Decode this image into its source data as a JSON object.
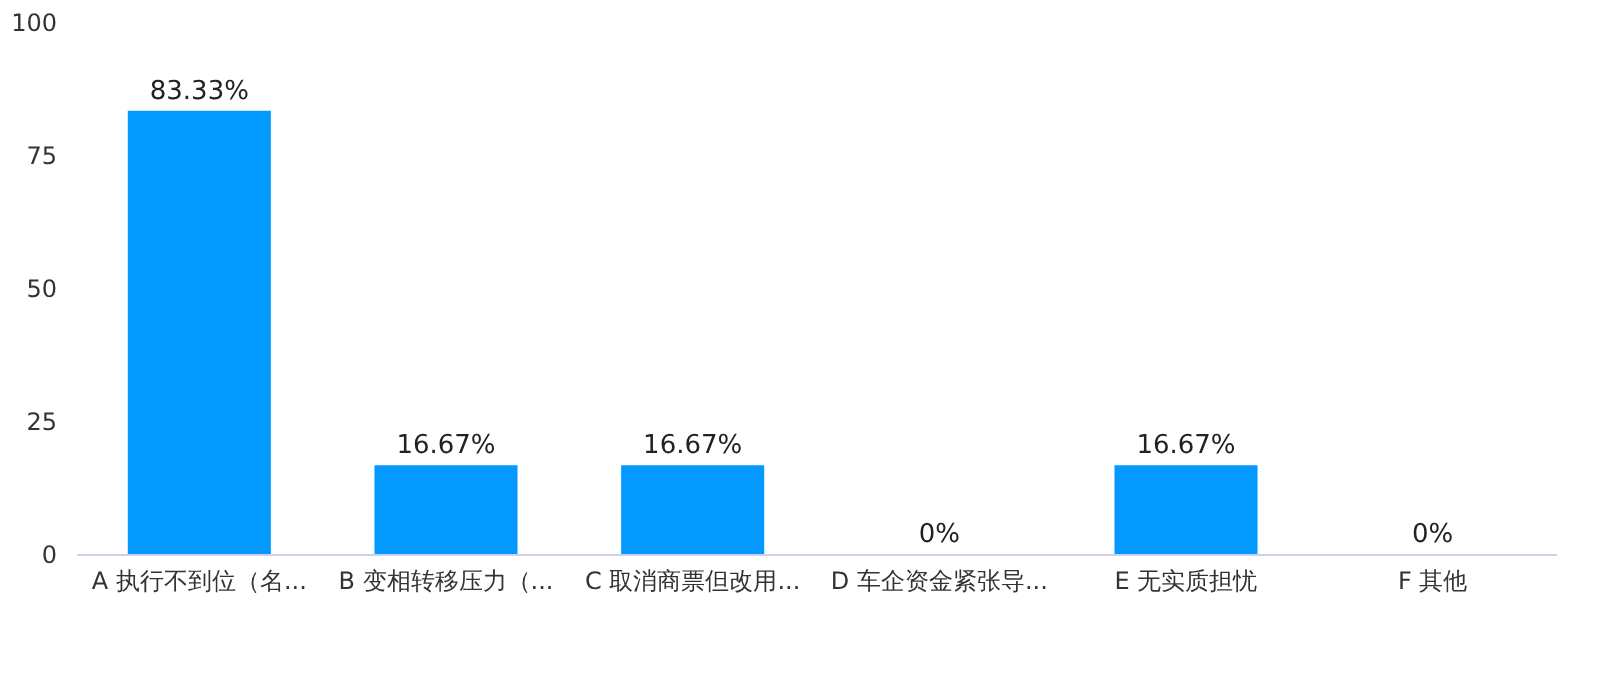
{
  "chart_data": {
    "type": "bar",
    "categories": [
      "A 执行不到位（名...",
      "B 变相转移压力（...",
      "C 取消商票但改用...",
      "D 车企资金紧张导...",
      "E 无实质担忧",
      "F 其他"
    ],
    "values": [
      83.33,
      16.67,
      16.67,
      0,
      16.67,
      0
    ],
    "value_labels": [
      "83.33%",
      "16.67%",
      "16.67%",
      "0%",
      "16.67%",
      "0%"
    ],
    "color": "#0399fe",
    "ylim": [
      0,
      100
    ],
    "yticks": [
      0,
      25,
      50,
      75,
      100
    ],
    "grid": false
  }
}
